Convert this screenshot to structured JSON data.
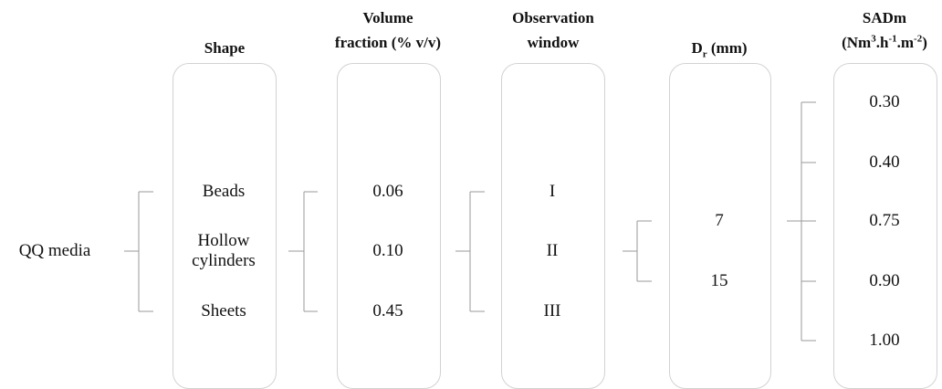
{
  "root": {
    "label": "QQ media"
  },
  "columns": [
    {
      "id": "shape",
      "header_lines": [
        "Shape"
      ],
      "items": [
        "Beads",
        "Hollow cylinders",
        "Sheets"
      ]
    },
    {
      "id": "volume_fraction",
      "header_lines": [
        "Volume",
        "fraction (% v/v)"
      ],
      "items": [
        "0.06",
        "0.10",
        "0.45"
      ]
    },
    {
      "id": "observation_window",
      "header_lines": [
        "Observation",
        "window"
      ],
      "items": [
        "I",
        "II",
        "III"
      ]
    },
    {
      "id": "dr",
      "header_main": "D",
      "header_sub": "r",
      "header_tail": " (mm)",
      "items": [
        "7",
        "15"
      ]
    },
    {
      "id": "sadm",
      "header_line1": "SADm",
      "header_line2": "(Nm3.h-1.m-2)",
      "items": [
        "0.30",
        "0.40",
        "0.75",
        "0.90",
        "1.00"
      ]
    }
  ]
}
